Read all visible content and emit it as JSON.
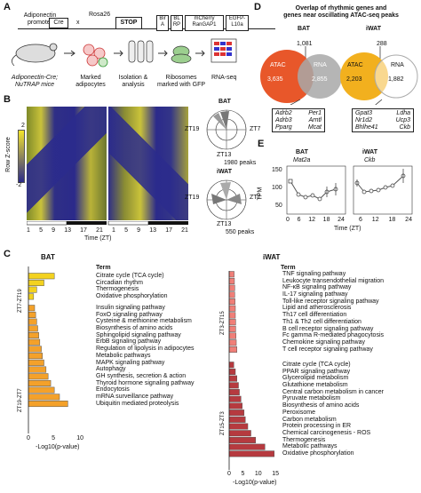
{
  "panel_labels": {
    "a": "A",
    "b": "B",
    "c": "C",
    "d": "D",
    "e": "E"
  },
  "panel_a": {
    "promoter": "Adiponectin promoter",
    "cre": "Cre",
    "cross": "x",
    "rosa": "Rosa26",
    "stop": "STOP",
    "bira": "Bir A",
    "blrp": "BL RP",
    "mcherry": "mCherry RanGAP1",
    "egfp": "EGFP- L10a",
    "mice": "Adiponectin-Cre; NuTRAP mice",
    "marked": "Marked adipocytes",
    "isolation": "Isolation & analysis",
    "ribosomes": "Ribosomes marked with GFP",
    "rnaseq": "RNA-seq"
  },
  "panel_b": {
    "ylabel": "Row Z-score",
    "z_top": "2",
    "z_bottom": "-2",
    "xlabel": "Time (ZT)",
    "ticks": [
      "1",
      "5",
      "9",
      "13",
      "17",
      "21",
      "1",
      "5",
      "9",
      "13",
      "17",
      "21"
    ],
    "bat_label": "BAT",
    "iwat_label": "iWAT",
    "zt19": "ZT19",
    "zt7": "ZT7",
    "zt13": "ZT13",
    "bat_peaks": "1980 peaks",
    "iwat_peaks": "550 peaks"
  },
  "panel_d": {
    "title_line1": "Overlap of rhythmic genes and",
    "title_line2": "genes near oscillating ATAC-seq peaks",
    "bat": {
      "label": "BAT",
      "atac": "ATAC",
      "rna": "RNA",
      "atac_only": "3,635",
      "overlap": "1,081",
      "rna_only": "2,855",
      "genes": [
        [
          "Adrb2",
          "Per1"
        ],
        [
          "Adrb3",
          "Arntl"
        ],
        [
          "Pparg",
          "Mcat"
        ]
      ]
    },
    "iwat": {
      "label": "iWAT",
      "atac": "ATAC",
      "rna": "RNA",
      "atac_only": "2,203",
      "overlap": "288",
      "rna_only": "1,882",
      "genes": [
        [
          "Gpat3",
          "Ldha"
        ],
        [
          "Nr1d2",
          "Ucp3"
        ],
        [
          "Bhlhe41",
          "Ckb"
        ]
      ]
    },
    "colors": {
      "atac": "#e8572a",
      "rna": "#9a9a9a",
      "atac_iwat": "#f2b01e"
    }
  },
  "panel_e": {
    "ylabel": "TPM",
    "xlabel": "Time (ZT)",
    "bat_title": "BAT",
    "bat_gene": "Mat2a",
    "iwat_title": "iWAT",
    "iwat_gene": "Ckb",
    "y_ticks": [
      "50",
      "100",
      "150"
    ],
    "bat_x_ticks": [
      "0",
      "6",
      "12",
      "18",
      "24"
    ],
    "iwat_x_ticks": [
      "6",
      "12",
      "18",
      "24"
    ]
  },
  "panel_c": {
    "bat_title": "BAT",
    "iwat_title": "iWAT",
    "term_header": "Term",
    "xlabel": "-Log10(p-value)",
    "bat_groups": [
      {
        "label": "ZT7-ZT19",
        "color": "#f3d21f",
        "terms": [
          "Citrate cycle (TCA cycle)",
          "Circadian rhythm",
          "Thermogenesis",
          "Oxidative phosphorylation"
        ],
        "values": [
          5.0,
          3.0,
          1.6,
          1.0
        ]
      },
      {
        "label": "ZT19-ZT7",
        "color": "#f4a12a",
        "terms": [
          "Insulin signaling pathway",
          "FoxO signaling pathway",
          "Cysteine & methionine metabolism",
          "Biosynthesis of amino acids",
          "Sphingolipid signaling pathway",
          "ErbB signaling pathway",
          "Regulation of lipolysis in adipocytes",
          "Metabolic pathways",
          "MAPK signaling pathway",
          "Autophagy",
          "GH synthesis, secretion & action",
          "Thyroid hormone signaling pathway",
          "Endocytosis",
          "mRNA surveillance pathway",
          "Ubiquitin mediated proteolysis"
        ],
        "values": [
          1.2,
          1.4,
          1.6,
          1.8,
          2.0,
          2.2,
          2.5,
          2.7,
          3.0,
          3.4,
          3.8,
          4.3,
          5.0,
          6.0,
          7.6
        ]
      }
    ],
    "bat_x_ticks": [
      "0",
      "5",
      "10"
    ],
    "iwat_groups": [
      {
        "label": "ZT3-ZT15",
        "color": "#f07f78",
        "terms": [
          "TNF signaling pathway",
          "Leukocyte transendothelial migration",
          "NF-κB signaling pathway",
          "IL-17 signaling pathway",
          "Toll-like receptor signaling pathway",
          "Lipid and atherosclerosis",
          "Th17 cell differentiation",
          "Th1 & Th2 cell differentiation",
          "B cell receptor signaling pathway",
          "Fc gamma R-mediated phagocytosis",
          "Chemokine signaling pathway",
          "T cell receptor signaling pathway"
        ],
        "values": [
          1.6,
          1.7,
          1.8,
          1.8,
          1.9,
          2.0,
          2.0,
          2.1,
          2.1,
          2.2,
          2.3,
          2.5
        ]
      },
      {
        "label": "ZT15-ZT3",
        "color": "#b63a3f",
        "terms": [
          "Citrate cycle (TCA cycle)",
          "PPAR signaling pathway",
          "Glycerolipid metabolism",
          "Glutathione metabolism",
          "Central carbon metabolism in cancer",
          "Pyruvate metabolism",
          "Biosynthesis of amino acids",
          "Peroxisome",
          "Carbon metabolism",
          "Protein processing in ER",
          "Chemical carcinogenesis - ROS",
          "Thermogenesis",
          "Metabolic pathways",
          "Oxidative phosphorylation"
        ],
        "values": [
          1.5,
          2.0,
          2.5,
          3.0,
          3.3,
          3.8,
          4.2,
          4.8,
          5.2,
          6.0,
          7.0,
          8.5,
          11.5,
          14.5
        ]
      }
    ],
    "iwat_x_ticks": [
      "0",
      "5",
      "10",
      "15"
    ]
  }
}
